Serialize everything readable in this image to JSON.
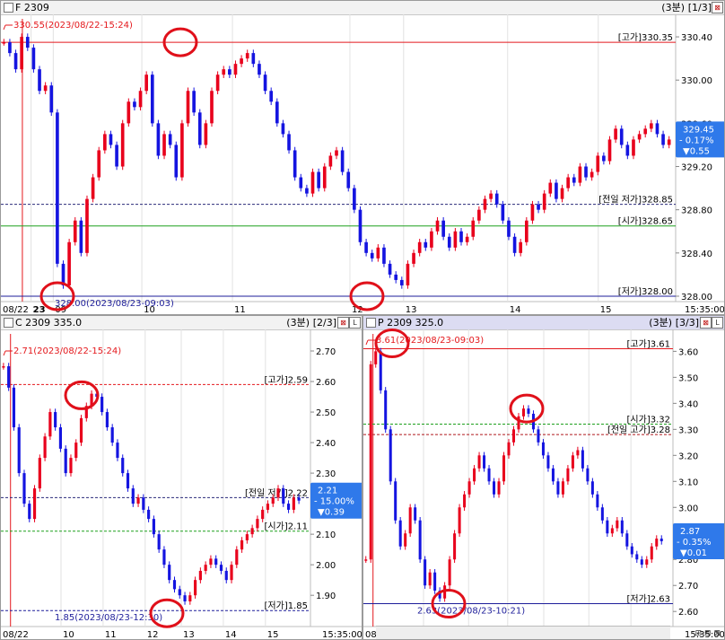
{
  "colors": {
    "up": "#e8001c",
    "down": "#1414e0",
    "high_line": "#e4181c",
    "low_line": "#1e1e9a",
    "open_line": "#1fa01f",
    "prev_line": "#2a2a7a",
    "badge": "#2f79ea",
    "circle": "#e0101a"
  },
  "panes": [
    {
      "id": "F",
      "title": "F 2309",
      "period": "(3분)",
      "page": "[1/3]",
      "axis": {
        "min": 327.95,
        "max": 330.55,
        "ticks": [
          "330.40",
          "330.00",
          "329.60",
          "329.20",
          "328.80",
          "328.40",
          "328.00"
        ],
        "tickvals": [
          330.4,
          330.0,
          329.6,
          329.2,
          328.8,
          328.4,
          328.0
        ]
      },
      "xlabels": [
        "08/22",
        "23",
        "09",
        "10",
        "11",
        "12",
        "13",
        "14",
        "15"
      ],
      "xlabel_pos": [
        0.0,
        0.045,
        0.078,
        0.21,
        0.345,
        0.52,
        0.6,
        0.755,
        0.89
      ],
      "time_label": "15:35:00",
      "levels": [
        {
          "key": "high",
          "value": 330.35,
          "label": "[고가]330.35",
          "style": "solid",
          "color": "#e4181c"
        },
        {
          "key": "prev",
          "value": 328.85,
          "label": "[전일 저가]328.85",
          "style": "dashed",
          "color": "#2a2a7a"
        },
        {
          "key": "open",
          "value": 328.65,
          "label": "[시가]328.65",
          "style": "solid",
          "color": "#1fa01f"
        },
        {
          "key": "low",
          "value": 328.0,
          "label": "[저가]328.00",
          "style": "solid",
          "color": "#1e1e9a"
        }
      ],
      "annot_top": "330.55(2023/08/22-15:24)",
      "annot_bottom": "328.00(2023/08/23-09:03)",
      "badge": {
        "price": "329.45",
        "pct": "- 0.17%",
        "chg": "▼0.55",
        "value": 329.45
      },
      "candles": [
        330.35,
        330.25,
        330.1,
        330.4,
        330.3,
        330.1,
        329.9,
        329.95,
        329.7,
        328.3,
        328.1,
        328.5,
        328.7,
        328.4,
        328.9,
        329.1,
        329.35,
        329.5,
        329.4,
        329.2,
        329.6,
        329.8,
        329.75,
        329.9,
        330.05,
        329.6,
        329.3,
        329.5,
        329.4,
        329.1,
        329.6,
        329.9,
        329.7,
        329.4,
        329.6,
        329.9,
        330.05,
        330.1,
        330.05,
        330.15,
        330.2,
        330.25,
        330.15,
        330.05,
        329.9,
        329.8,
        329.6,
        329.5,
        329.35,
        329.1,
        329.0,
        328.95,
        329.15,
        329.0,
        329.2,
        329.3,
        329.35,
        329.15,
        329.0,
        328.8,
        328.5,
        328.4,
        328.35,
        328.45,
        328.3,
        328.2,
        328.15,
        328.1,
        328.3,
        328.4,
        328.5,
        328.45,
        328.6,
        328.7,
        328.55,
        328.45,
        328.6,
        328.5,
        328.55,
        328.7,
        328.8,
        328.9,
        328.95,
        328.85,
        328.7,
        328.55,
        328.4,
        328.5,
        328.7,
        328.85,
        328.8,
        328.95,
        329.05,
        328.9,
        329.0,
        329.1,
        329.05,
        329.2,
        329.1,
        329.15,
        329.3,
        329.25,
        329.45,
        329.55,
        329.4,
        329.3,
        329.45,
        329.5,
        329.55,
        329.6,
        329.5,
        329.4,
        329.45
      ]
    },
    {
      "id": "C",
      "title": "C 2309 335.0",
      "period": "(3분)",
      "page": "[2/3]",
      "axis": {
        "min": 1.83,
        "max": 2.75,
        "ticks": [
          "2.70",
          "2.60",
          "2.50",
          "2.40",
          "2.30",
          "2.20",
          "2.10",
          "2.00",
          "1.90"
        ],
        "tickvals": [
          2.7,
          2.6,
          2.5,
          2.4,
          2.3,
          2.2,
          2.1,
          2.0,
          1.9
        ]
      },
      "xlabels": [
        "08/22",
        "10",
        "11",
        "12",
        "13",
        "14",
        "15"
      ],
      "xlabel_pos": [
        0.0,
        0.2,
        0.34,
        0.48,
        0.6,
        0.74,
        0.88
      ],
      "time_label": "15:35:00",
      "levels": [
        {
          "key": "high",
          "value": 2.59,
          "label": "[고가]2.59",
          "style": "dashed",
          "color": "#e4181c"
        },
        {
          "key": "prev",
          "value": 2.22,
          "label": "[전일 저가]2.22",
          "style": "dashed",
          "color": "#2a2a7a"
        },
        {
          "key": "open",
          "value": 2.11,
          "label": "[시가]2.11",
          "style": "dashed",
          "color": "#1fa01f"
        },
        {
          "key": "low",
          "value": 1.85,
          "label": "[저가]1.85",
          "style": "dashed",
          "color": "#1e1e9a"
        }
      ],
      "annot_top": "2.71(2023/08/22-15:24)",
      "annot_bottom": "1.85(2023/08/23-12:30)",
      "badge": {
        "price": "2.21",
        "pct": "- 15.00%",
        "chg": "▼0.39",
        "value": 2.21
      },
      "candles": [
        2.65,
        2.58,
        2.45,
        2.3,
        2.2,
        2.15,
        2.25,
        2.35,
        2.42,
        2.5,
        2.45,
        2.38,
        2.3,
        2.35,
        2.4,
        2.48,
        2.52,
        2.56,
        2.55,
        2.5,
        2.45,
        2.4,
        2.35,
        2.3,
        2.25,
        2.2,
        2.22,
        2.18,
        2.15,
        2.1,
        2.05,
        2.0,
        1.95,
        1.92,
        1.9,
        1.88,
        1.9,
        1.95,
        1.98,
        2.0,
        2.02,
        2.0,
        1.98,
        1.95,
        2.0,
        2.05,
        2.08,
        2.1,
        2.12,
        2.15,
        2.18,
        2.2,
        2.22,
        2.25,
        2.2,
        2.18,
        2.22,
        2.21
      ]
    },
    {
      "id": "P",
      "title": "P 2309 325.0",
      "period": "(3분)",
      "page": "[3/3]",
      "axis": {
        "min": 2.58,
        "max": 3.66,
        "ticks": [
          "3.60",
          "3.50",
          "3.40",
          "3.30",
          "3.20",
          "3.10",
          "3.00",
          "2.90",
          "2.80",
          "2.70",
          "2.60"
        ],
        "tickvals": [
          3.6,
          3.5,
          3.4,
          3.3,
          3.2,
          3.1,
          3.0,
          2.9,
          2.8,
          2.7,
          2.6
        ]
      },
      "xlabels": [
        "08/22",
        "10",
        "11",
        "12",
        "13",
        "14",
        "15"
      ],
      "xlabel_pos": [
        0.0,
        0.2,
        0.35,
        0.48,
        0.6,
        0.75,
        0.89
      ],
      "time_label": "15:35:00",
      "levels": [
        {
          "key": "high",
          "value": 3.61,
          "label": "[고가]3.61",
          "style": "solid",
          "color": "#e4181c"
        },
        {
          "key": "open",
          "value": 3.32,
          "label": "[시가]3.32",
          "style": "dashed",
          "color": "#1fa01f"
        },
        {
          "key": "prev",
          "value": 3.28,
          "label": "[전일 고가]3.28",
          "style": "dashed",
          "color": "#b0181c"
        },
        {
          "key": "low",
          "value": 2.63,
          "label": "[저가]2.63",
          "style": "solid",
          "color": "#1e1e9a"
        }
      ],
      "annot_top": "3.61(2023/08/23-09:03)",
      "annot_bottom": "2.63(2023/08/23-10:21)",
      "badge": {
        "price": "2.87",
        "pct": "- 0.35%",
        "chg": "▼0.01",
        "value": 2.87
      },
      "candles": [
        2.8,
        3.55,
        3.6,
        3.45,
        3.3,
        3.1,
        2.95,
        2.85,
        2.9,
        3.0,
        2.95,
        2.8,
        2.7,
        2.75,
        2.68,
        2.65,
        2.7,
        2.8,
        2.9,
        3.0,
        3.05,
        3.1,
        3.15,
        3.2,
        3.15,
        3.1,
        3.05,
        3.1,
        3.2,
        3.25,
        3.3,
        3.35,
        3.38,
        3.36,
        3.3,
        3.25,
        3.2,
        3.15,
        3.1,
        3.05,
        3.1,
        3.15,
        3.2,
        3.22,
        3.15,
        3.1,
        3.05,
        3.0,
        2.95,
        2.9,
        2.92,
        2.95,
        2.9,
        2.85,
        2.82,
        2.8,
        2.78,
        2.8,
        2.85,
        2.88,
        2.87
      ]
    }
  ]
}
